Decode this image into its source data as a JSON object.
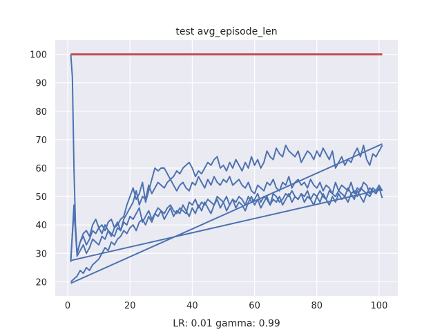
{
  "chart_data": {
    "type": "line",
    "title": "test avg_episode_len",
    "xlabel": "LR: 0.01 gamma: 0.99",
    "ylabel": "",
    "xlim": [
      -4,
      106
    ],
    "ylim": [
      15,
      105
    ],
    "xticks": [
      0,
      20,
      40,
      60,
      80,
      100
    ],
    "yticks": [
      20,
      30,
      40,
      50,
      60,
      70,
      80,
      90,
      100
    ],
    "grid": true,
    "background": "#eaeaf2",
    "gridColor": "#ffffff",
    "series": [
      {
        "color": "#c44e52",
        "x": [
          1,
          101
        ],
        "y": [
          100,
          100
        ]
      },
      {
        "color": "#4c72b0",
        "x": [
          1,
          1.5,
          2,
          2.5,
          3,
          4,
          5,
          6,
          7,
          8,
          9,
          10,
          11,
          12,
          13,
          14,
          15,
          16,
          17,
          18,
          19,
          20,
          21,
          22,
          23,
          24,
          25,
          26,
          27,
          28,
          29,
          30,
          31,
          32,
          33,
          34,
          35,
          36,
          37,
          38,
          39,
          40,
          41,
          42,
          43,
          44,
          45,
          46,
          47,
          48,
          49,
          50,
          51,
          52,
          53,
          54,
          55,
          56,
          57,
          58,
          59,
          60,
          61,
          62,
          63,
          64,
          65,
          66,
          67,
          68,
          69,
          70,
          71,
          72,
          73,
          74,
          75,
          76,
          77,
          78,
          79,
          80,
          81,
          82,
          83,
          84,
          85,
          86,
          87,
          88,
          89,
          90,
          91,
          92,
          93,
          94,
          95,
          96,
          97,
          98,
          99,
          100,
          101
        ],
        "y": [
          100,
          92,
          60,
          40,
          30,
          34,
          36,
          33,
          35,
          38,
          37,
          39,
          40,
          38,
          41,
          42,
          39,
          40,
          42,
          43,
          47,
          50,
          53,
          49,
          51,
          55,
          48,
          52,
          56,
          60,
          59,
          60,
          60,
          58,
          56,
          57,
          59,
          58,
          60,
          61,
          62,
          60,
          57,
          59,
          58,
          60,
          62,
          61,
          63,
          64,
          60,
          61,
          59,
          62,
          60,
          63,
          61,
          59,
          62,
          60,
          64,
          61,
          63,
          60,
          62,
          66,
          64,
          63,
          67,
          65,
          64,
          68,
          66,
          65,
          64,
          66,
          62,
          64,
          66,
          65,
          63,
          66,
          64,
          67,
          65,
          63,
          66,
          60,
          62,
          64,
          61,
          63,
          62,
          65,
          67,
          64,
          68,
          63,
          61,
          65,
          64,
          66,
          68
        ]
      },
      {
        "color": "#4c72b0",
        "x": [
          1,
          2,
          3,
          4,
          5,
          6,
          7,
          8,
          9,
          10,
          11,
          12,
          13,
          14,
          15,
          16,
          17,
          18,
          19,
          20,
          21,
          22,
          23,
          24,
          25,
          26,
          27,
          28,
          29,
          30,
          31,
          32,
          33,
          34,
          35,
          36,
          37,
          38,
          39,
          40,
          41,
          42,
          43,
          44,
          45,
          46,
          47,
          48,
          49,
          50,
          51,
          52,
          53,
          54,
          55,
          56,
          57,
          58,
          59,
          60,
          61,
          62,
          63,
          64,
          65,
          66,
          67,
          68,
          69,
          70,
          71,
          72,
          73,
          74,
          75,
          76,
          77,
          78,
          79,
          80,
          81,
          82,
          83,
          84,
          85,
          86,
          87,
          88,
          89,
          90,
          91,
          92,
          93,
          94,
          95,
          96,
          97,
          98,
          99,
          100,
          101
        ],
        "y": [
          28,
          45,
          30,
          34,
          37,
          38,
          36,
          40,
          42,
          39,
          37,
          40,
          38,
          36,
          39,
          41,
          38,
          42,
          44,
          46,
          48,
          52,
          47,
          50,
          49,
          54,
          51,
          53,
          55,
          54,
          53,
          55,
          56,
          54,
          52,
          54,
          55,
          53,
          52,
          55,
          54,
          57,
          55,
          53,
          56,
          54,
          57,
          55,
          54,
          56,
          55,
          57,
          54,
          55,
          56,
          54,
          53,
          55,
          52,
          51,
          54,
          53,
          52,
          55,
          54,
          56,
          53,
          52,
          55,
          54,
          57,
          53,
          55,
          56,
          54,
          55,
          53,
          56,
          54,
          53,
          55,
          52,
          54,
          53,
          51,
          55,
          52,
          54,
          53,
          52,
          55,
          51,
          53,
          52,
          55,
          54,
          51,
          53,
          52,
          54,
          52
        ]
      },
      {
        "color": "#4c72b0",
        "x": [
          1,
          2,
          3,
          4,
          5,
          6,
          7,
          8,
          9,
          10,
          11,
          12,
          13,
          14,
          15,
          16,
          17,
          18,
          19,
          20,
          21,
          22,
          23,
          24,
          25,
          26,
          27,
          28,
          29,
          30,
          31,
          32,
          33,
          34,
          35,
          36,
          37,
          38,
          39,
          40,
          41,
          42,
          43,
          44,
          45,
          46,
          47,
          48,
          49,
          50,
          51,
          52,
          53,
          54,
          55,
          56,
          57,
          58,
          59,
          60,
          61,
          62,
          63,
          64,
          65,
          66,
          67,
          68,
          69,
          70,
          71,
          72,
          73,
          74,
          75,
          76,
          77,
          78,
          79,
          80,
          81,
          82,
          83,
          84,
          85,
          86,
          87,
          88,
          89,
          90,
          91,
          92,
          93,
          94,
          95,
          96,
          97,
          98,
          99,
          100,
          101
        ],
        "y": [
          27,
          47,
          29,
          31,
          33,
          30,
          32,
          35,
          34,
          33,
          36,
          35,
          38,
          37,
          36,
          39,
          38,
          41,
          40,
          43,
          42,
          44,
          46,
          41,
          43,
          45,
          42,
          44,
          46,
          45,
          44,
          46,
          47,
          45,
          44,
          46,
          45,
          44,
          48,
          47,
          49,
          46,
          48,
          47,
          49,
          48,
          47,
          50,
          49,
          48,
          50,
          47,
          49,
          48,
          50,
          49,
          47,
          50,
          48,
          49,
          51,
          48,
          50,
          49,
          47,
          51,
          50,
          48,
          49,
          51,
          50,
          52,
          50,
          49,
          51,
          50,
          52,
          49,
          51,
          50,
          52,
          50,
          49,
          52,
          51,
          50,
          52,
          51,
          50,
          53,
          51,
          52,
          50,
          53,
          52,
          51,
          53,
          52,
          51,
          53,
          52
        ]
      },
      {
        "color": "#4c72b0",
        "x": [
          1,
          2,
          3,
          4,
          5,
          6,
          7,
          8,
          9,
          10,
          11,
          12,
          13,
          14,
          15,
          16,
          17,
          18,
          19,
          20,
          21,
          22,
          23,
          24,
          25,
          26,
          27,
          28,
          29,
          30,
          31,
          32,
          33,
          34,
          35,
          36,
          37,
          38,
          39,
          40,
          41,
          42,
          43,
          44,
          45,
          46,
          47,
          48,
          49,
          50,
          51,
          52,
          53,
          54,
          55,
          56,
          57,
          58,
          59,
          60,
          61,
          62,
          63,
          64,
          65,
          66,
          67,
          68,
          69,
          70,
          71,
          72,
          73,
          74,
          75,
          76,
          77,
          78,
          79,
          80,
          81,
          82,
          83,
          84,
          85,
          86,
          87,
          88,
          89,
          90,
          91,
          92,
          93,
          94,
          95,
          96,
          97,
          98,
          99,
          100,
          101
        ],
        "y": [
          20,
          21,
          22,
          24,
          23,
          25,
          24,
          26,
          27,
          28,
          30,
          32,
          31,
          34,
          33,
          35,
          36,
          38,
          37,
          39,
          40,
          38,
          41,
          42,
          40,
          43,
          41,
          44,
          43,
          45,
          42,
          44,
          46,
          43,
          45,
          44,
          47,
          45,
          43,
          46,
          44,
          47,
          45,
          48,
          46,
          44,
          47,
          49,
          46,
          48,
          45,
          47,
          49,
          46,
          48,
          47,
          45,
          48,
          50,
          47,
          49,
          46,
          48,
          50,
          47,
          49,
          48,
          50,
          47,
          49,
          51,
          48,
          50,
          49,
          51,
          48,
          50,
          49,
          47,
          50,
          48,
          51,
          49,
          47,
          50,
          48,
          51,
          49,
          50,
          48,
          51,
          49,
          52,
          50,
          48,
          51,
          50,
          52,
          51,
          53,
          49.5
        ]
      },
      {
        "color": "#4c72b0",
        "x": [
          1,
          101
        ],
        "y": [
          19.5,
          68.5
        ]
      },
      {
        "color": "#4c72b0",
        "x": [
          1,
          101
        ],
        "y": [
          27.5,
          52.5
        ]
      }
    ]
  }
}
